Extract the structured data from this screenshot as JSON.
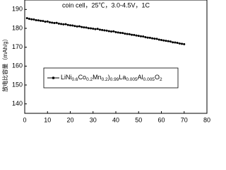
{
  "chart_data": {
    "type": "line",
    "title": "coin cell，25℃，3.0-4.5V，1C",
    "y_label": "放电比容量（mAh/g）",
    "x": [
      1,
      2,
      3,
      4,
      5,
      6,
      7,
      8,
      9,
      10,
      11,
      12,
      13,
      14,
      15,
      16,
      17,
      18,
      19,
      20,
      21,
      22,
      23,
      24,
      25,
      26,
      27,
      28,
      29,
      30,
      31,
      32,
      33,
      34,
      35,
      36,
      37,
      38,
      39,
      40,
      41,
      42,
      43,
      44,
      45,
      46,
      47,
      48,
      49,
      50,
      51,
      52,
      53,
      54,
      55,
      56,
      57,
      58,
      59,
      60,
      61,
      62,
      63,
      64,
      65,
      66,
      67,
      68,
      69,
      70
    ],
    "series": [
      {
        "name": "LiNi0.6Co0.2Mn0.2)0.99La0.005Al0.005O2",
        "color": "#000000",
        "values": [
          185.4,
          185.0,
          184.8,
          184.7,
          184.3,
          184.2,
          184.0,
          183.9,
          183.5,
          183.6,
          183.2,
          183.0,
          182.8,
          182.9,
          182.5,
          182.3,
          182.1,
          182.2,
          181.8,
          181.6,
          181.5,
          181.2,
          181.0,
          181.1,
          180.7,
          180.5,
          180.4,
          180.1,
          180.0,
          179.8,
          179.6,
          179.7,
          179.3,
          179.1,
          178.9,
          178.8,
          178.5,
          178.3,
          178.4,
          178.0,
          177.8,
          177.6,
          177.5,
          177.2,
          177.0,
          176.9,
          176.6,
          176.5,
          176.2,
          176.0,
          175.8,
          175.7,
          175.3,
          175.1,
          175.0,
          174.7,
          174.5,
          174.4,
          174.0,
          173.8,
          173.6,
          173.4,
          173.2,
          173.0,
          172.6,
          172.5,
          172.3,
          172.0,
          171.8,
          171.6
        ]
      }
    ],
    "xlim": [
      0,
      80
    ],
    "xticks": [
      0,
      10,
      20,
      30,
      40,
      50,
      60,
      70,
      80
    ],
    "ylim": [
      135,
      195
    ],
    "yticks": [
      140,
      150,
      160,
      170,
      180,
      190
    ]
  }
}
